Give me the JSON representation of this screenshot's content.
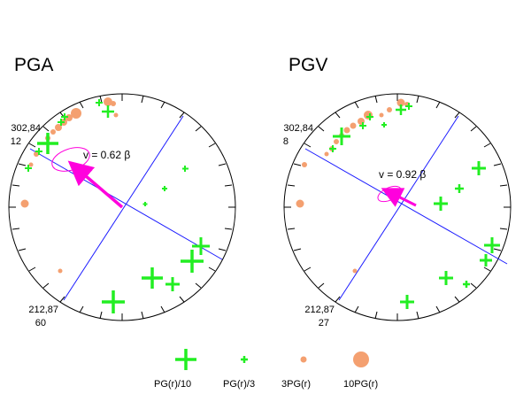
{
  "panels": [
    {
      "id": "pga",
      "title": "PGA",
      "velocity_label": "v = 0.62 β",
      "plane1": {
        "strike_dip": "302,84",
        "value": "12"
      },
      "plane2": {
        "strike_dip": "212,87",
        "value": "60"
      }
    },
    {
      "id": "pgv",
      "title": "PGV",
      "velocity_label": "v = 0.92 β",
      "plane1": {
        "strike_dip": "302,84",
        "value": "8"
      },
      "plane2": {
        "strike_dip": "212,87",
        "value": "27"
      }
    }
  ],
  "legend": [
    {
      "label": "PG(r)/10",
      "symbol": "large-green-cross"
    },
    {
      "label": "PG(r)/3",
      "symbol": "small-green-cross"
    },
    {
      "label": "3PG(r)",
      "symbol": "small-orange-dot"
    },
    {
      "label": "10PG(r)",
      "symbol": "large-orange-dot"
    }
  ],
  "colors": {
    "cross": "#22ee22",
    "dot": "#f4a070",
    "plane": "#1a1aff",
    "arrow": "#ff00dd",
    "circle": "#000000"
  }
}
